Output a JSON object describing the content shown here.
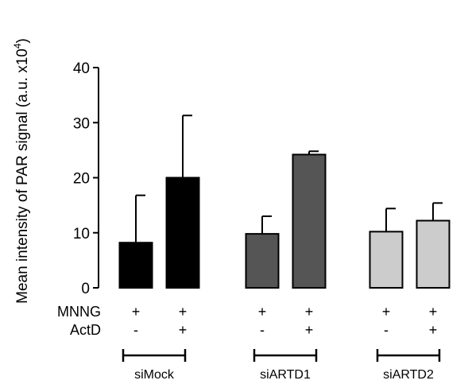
{
  "chart_data": {
    "type": "bar",
    "ylabel": "Mean intensity of PAR signal (a.u. x10",
    "ylabel_superscript": "4",
    "ylabel_close": ")",
    "ylim": [
      0,
      40
    ],
    "yticks": [
      0,
      10,
      20,
      30,
      40
    ],
    "grid": false,
    "bars": [
      {
        "group": "siMock",
        "value": 8.2,
        "error": 8.6,
        "color": "#000000",
        "mnng": "+",
        "actd": "-"
      },
      {
        "group": "siMock",
        "value": 20.0,
        "error": 11.3,
        "color": "#000000",
        "mnng": "+",
        "actd": "+"
      },
      {
        "group": "siARTD1",
        "value": 9.8,
        "error": 3.2,
        "color": "#555555",
        "mnng": "+",
        "actd": "-"
      },
      {
        "group": "siARTD1",
        "value": 24.2,
        "error": 0.6,
        "color": "#555555",
        "mnng": "+",
        "actd": "+"
      },
      {
        "group": "siARTD2",
        "value": 10.2,
        "error": 4.2,
        "color": "#cccccc",
        "mnng": "+",
        "actd": "-"
      },
      {
        "group": "siARTD2",
        "value": 12.2,
        "error": 3.2,
        "color": "#cccccc",
        "mnng": "+",
        "actd": "+"
      }
    ],
    "conditions": [
      {
        "label": "MNNG",
        "key": "mnng"
      },
      {
        "label": "ActD",
        "key": "actd"
      }
    ],
    "groups": [
      "siMock",
      "siARTD1",
      "siARTD2"
    ]
  }
}
